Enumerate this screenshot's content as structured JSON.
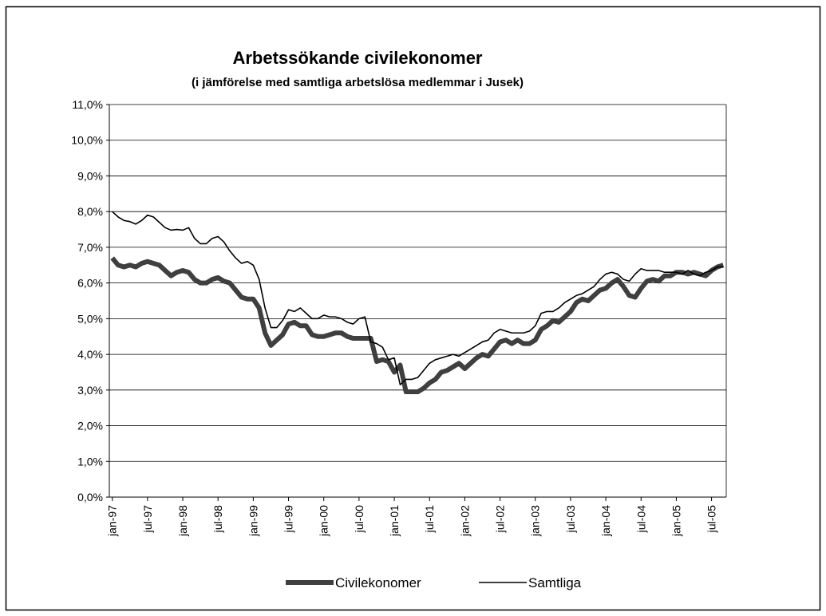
{
  "chart_data": {
    "type": "line",
    "title": "Arbetssökande civilekonomer",
    "subtitle": "(i jämförelse med samtliga arbetslösa medlemmar i Jusek)",
    "categories": [
      "jan-97",
      null,
      null,
      null,
      null,
      null,
      "jul-97",
      null,
      null,
      null,
      null,
      null,
      "jan-98",
      null,
      null,
      null,
      null,
      null,
      "jul-98",
      null,
      null,
      null,
      null,
      null,
      "jan-99",
      null,
      null,
      null,
      null,
      null,
      "jul-99",
      null,
      null,
      null,
      null,
      null,
      "jan-00",
      null,
      null,
      null,
      null,
      null,
      "jul-00",
      null,
      null,
      null,
      null,
      null,
      "jan-01",
      null,
      null,
      null,
      null,
      null,
      "jul-01",
      null,
      null,
      null,
      null,
      null,
      "jan-02",
      null,
      null,
      null,
      null,
      null,
      "jul-02",
      null,
      null,
      null,
      null,
      null,
      "jan-03",
      null,
      null,
      null,
      null,
      null,
      "jul-03",
      null,
      null,
      null,
      null,
      null,
      "jan-04",
      null,
      null,
      null,
      null,
      null,
      "jul-04",
      null,
      null,
      null,
      null,
      null,
      "jan-05",
      null,
      null,
      null,
      null,
      null,
      "jul-05",
      null,
      null
    ],
    "series": [
      {
        "name": "Civilekonomer",
        "color": "#3f3f3f",
        "line_width": 6,
        "values": [
          6.7,
          6.5,
          6.45,
          6.5,
          6.45,
          6.55,
          6.6,
          6.55,
          6.5,
          6.35,
          6.2,
          6.3,
          6.35,
          6.3,
          6.1,
          6.0,
          6.0,
          6.1,
          6.15,
          6.05,
          6.0,
          5.8,
          5.6,
          5.55,
          5.55,
          5.3,
          4.6,
          4.25,
          4.4,
          4.55,
          4.85,
          4.9,
          4.8,
          4.8,
          4.55,
          4.5,
          4.5,
          4.55,
          4.6,
          4.6,
          4.5,
          4.45,
          4.45,
          4.45,
          4.45,
          3.8,
          3.85,
          3.8,
          3.5,
          3.7,
          2.95,
          2.95,
          2.95,
          3.05,
          3.2,
          3.3,
          3.5,
          3.55,
          3.65,
          3.75,
          3.6,
          3.75,
          3.9,
          4.0,
          3.95,
          4.15,
          4.35,
          4.4,
          4.3,
          4.4,
          4.3,
          4.3,
          4.4,
          4.7,
          4.8,
          4.95,
          4.9,
          5.05,
          5.2,
          5.45,
          5.55,
          5.5,
          5.65,
          5.8,
          5.85,
          6.0,
          6.1,
          5.9,
          5.65,
          5.6,
          5.85,
          6.05,
          6.1,
          6.05,
          6.2,
          6.2,
          6.3,
          6.3,
          6.25,
          6.3,
          6.25,
          6.2,
          6.35,
          6.45,
          6.5
        ]
      },
      {
        "name": "Samtliga",
        "color": "#000000",
        "line_width": 1.6,
        "values": [
          8.0,
          7.85,
          7.75,
          7.72,
          7.65,
          7.75,
          7.9,
          7.85,
          7.7,
          7.55,
          7.48,
          7.5,
          7.48,
          7.55,
          7.25,
          7.1,
          7.1,
          7.25,
          7.3,
          7.15,
          6.9,
          6.7,
          6.55,
          6.6,
          6.5,
          6.1,
          5.3,
          4.75,
          4.75,
          4.95,
          5.25,
          5.2,
          5.3,
          5.15,
          5.0,
          5.0,
          5.1,
          5.05,
          5.05,
          5.0,
          4.9,
          4.85,
          5.0,
          5.05,
          4.35,
          4.3,
          4.2,
          3.85,
          3.9,
          3.15,
          3.3,
          3.3,
          3.35,
          3.55,
          3.75,
          3.85,
          3.9,
          3.95,
          4.0,
          3.95,
          4.05,
          4.15,
          4.25,
          4.35,
          4.4,
          4.6,
          4.7,
          4.65,
          4.6,
          4.6,
          4.6,
          4.65,
          4.8,
          5.15,
          5.2,
          5.2,
          5.3,
          5.45,
          5.55,
          5.65,
          5.7,
          5.8,
          5.9,
          6.1,
          6.25,
          6.3,
          6.25,
          6.1,
          6.05,
          6.25,
          6.4,
          6.35,
          6.35,
          6.35,
          6.3,
          6.3,
          6.3,
          6.25,
          6.35,
          6.25,
          6.2,
          6.3,
          6.35,
          6.45,
          6.45
        ]
      }
    ],
    "ylim": [
      0,
      11
    ],
    "yticks": [
      {
        "value": 0,
        "label": "0,0%"
      },
      {
        "value": 1,
        "label": "1,0%"
      },
      {
        "value": 2,
        "label": "2,0%"
      },
      {
        "value": 3,
        "label": "3,0%"
      },
      {
        "value": 4,
        "label": "4,0%"
      },
      {
        "value": 5,
        "label": "5,0%"
      },
      {
        "value": 6,
        "label": "6,0%"
      },
      {
        "value": 7,
        "label": "7,0%"
      },
      {
        "value": 8,
        "label": "8,0%"
      },
      {
        "value": 9,
        "label": "9,0%"
      },
      {
        "value": 10,
        "label": "10,0%"
      },
      {
        "value": 11,
        "label": "11,0%"
      }
    ],
    "grid": true
  }
}
